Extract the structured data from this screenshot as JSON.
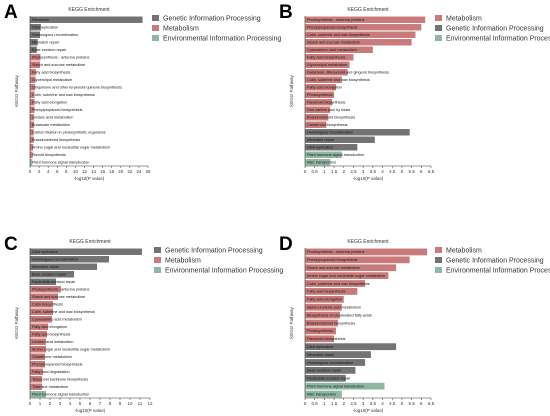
{
  "colors": {
    "genetic": "#737373",
    "metabolism": "#c97b7b",
    "environmental": "#8fb7a3",
    "axis": "#333333"
  },
  "chart_data": [
    {
      "panel": "A",
      "type": "bar",
      "orientation": "horizontal",
      "title": "KEGG Enrichment",
      "xlabel": "-log10(P value)",
      "ylabel": "KEGG Pathway",
      "xlim": [
        0,
        26
      ],
      "xticks": [
        "0",
        "2",
        "4",
        "6",
        "8",
        "10",
        "12",
        "14",
        "16",
        "18",
        "20",
        "22",
        "24",
        "26"
      ],
      "legend": [
        {
          "label": "Genetic Information Processing",
          "group": "genetic"
        },
        {
          "label": "Metabolism",
          "group": "metabolism"
        },
        {
          "label": "Environmental Information Processing",
          "group": "environmental"
        }
      ],
      "legend_position": "right",
      "categories": [
        "Ribosome",
        "DNA replication",
        "Homologous recombination",
        "Mismatch repair",
        "Base excision repair",
        "Photosynthesis - antenna proteins",
        "Starch and sucrose metabolism",
        "Fatty acid biosynthesis",
        "Glycerolipid metabolism",
        "Ubiquinone and other terpenoid-quinone biosynthesis",
        "Cutin, suberine and wax biosynthesis",
        "Fatty acid elongation",
        "Phenylpropanoid biosynthesis",
        "Linoleic acid metabolism",
        "Butanoate metabolism",
        "Carbon fixation in photosynthetic organisms",
        "Brassinosteroid biosynthesis",
        "Amino sugar and nucleotide sugar metabolism",
        "Steroid biosynthesis",
        "Plant hormone signal transduction"
      ],
      "values": [
        24.8,
        2.4,
        2.2,
        1.7,
        1.5,
        2.3,
        2.2,
        1.3,
        1.2,
        1.1,
        1.0,
        1.0,
        1.0,
        0.9,
        0.9,
        0.8,
        0.8,
        0.7,
        0.6,
        0.5
      ],
      "groups": [
        "genetic",
        "genetic",
        "genetic",
        "genetic",
        "genetic",
        "metabolism",
        "metabolism",
        "metabolism",
        "metabolism",
        "metabolism",
        "metabolism",
        "metabolism",
        "metabolism",
        "metabolism",
        "metabolism",
        "metabolism",
        "metabolism",
        "metabolism",
        "metabolism",
        "environmental"
      ]
    },
    {
      "panel": "B",
      "type": "bar",
      "orientation": "horizontal",
      "title": "KEGG Enrichment",
      "xlabel": "-log10(P value)",
      "ylabel": "KEGG Pathway",
      "xlim": [
        0,
        6.5
      ],
      "xticks": [
        "0",
        "0.5",
        "1",
        "1.5",
        "2",
        "2.5",
        "3",
        "3.5",
        "4",
        "4.5",
        "5",
        "5.5",
        "6",
        "6.5"
      ],
      "legend": [
        {
          "label": "Metabolism",
          "group": "metabolism"
        },
        {
          "label": "Genetic Information Processing",
          "group": "genetic"
        },
        {
          "label": "Environmental Information Processing",
          "group": "environmental"
        }
      ],
      "legend_position": "right",
      "categories": [
        "Photosynthesis - antenna proteins",
        "Phenylpropanoid biosynthesis",
        "Cutin, suberine and wax biosynthesis",
        "Starch and sucrose metabolism",
        "Cyanoamino acid metabolism",
        "Fatty acid biosynthesis",
        "Glycerolipid metabolism",
        "Galactose, diterpenoid and gingerol biosynthesis",
        "Cutin, suberine and wax biosynthesis",
        "Fatty acid elongation",
        "Photosynthesis",
        "Flavonoid biosynthesis",
        "One carbon pool by folate",
        "Brassinosteroid biosynthesis",
        "Carotenoid biosynthesis",
        "Homologous recombination",
        "Mismatch repair",
        "DNA replication",
        "Plant hormone signal transduction",
        "ABC transporters"
      ],
      "values": [
        6.2,
        6.0,
        5.7,
        5.5,
        3.5,
        2.5,
        2.3,
        2.2,
        1.9,
        1.6,
        1.5,
        1.4,
        1.3,
        1.2,
        1.1,
        5.4,
        3.6,
        2.7,
        1.9,
        1.3
      ],
      "groups": [
        "metabolism",
        "metabolism",
        "metabolism",
        "metabolism",
        "metabolism",
        "metabolism",
        "metabolism",
        "metabolism",
        "metabolism",
        "metabolism",
        "metabolism",
        "metabolism",
        "metabolism",
        "metabolism",
        "metabolism",
        "genetic",
        "genetic",
        "genetic",
        "environmental",
        "environmental"
      ]
    },
    {
      "panel": "C",
      "type": "bar",
      "orientation": "horizontal",
      "title": "KEGG Enrichment",
      "xlabel": "-log10(P value)",
      "ylabel": "KEGG Pathway",
      "xlim": [
        0,
        12
      ],
      "xticks": [
        "0",
        "1",
        "2",
        "3",
        "4",
        "5",
        "6",
        "7",
        "8",
        "9",
        "10",
        "11",
        "12"
      ],
      "legend": [
        {
          "label": "Genetic Information Processing",
          "group": "genetic"
        },
        {
          "label": "Metabolism",
          "group": "metabolism"
        },
        {
          "label": "Environmental Information Processing",
          "group": "environmental"
        }
      ],
      "legend_position": "right",
      "categories": [
        "DNA replication",
        "Homologous recombination",
        "Mismatch repair",
        "Base excision repair",
        "Nucleotide excision repair",
        "Photosynthesis - antenna proteins",
        "Starch and sucrose metabolism",
        "Cutin biosynthesis",
        "Cutin, suberine and wax biosynthesis",
        "Cyanoamino acid metabolism",
        "Fatty acid elongation",
        "Fatty acid biosynthesis",
        "Linoleic acid metabolism",
        "Amino sugar and nucleotide sugar metabolism",
        "Glutathione metabolism",
        "Phenylpropanoid biosynthesis",
        "Fatty acid degradation",
        "Terpenoid backbone biosynthesis",
        "Thiamine metabolism",
        "Plant hormone signal transduction"
      ],
      "values": [
        11.2,
        7.9,
        6.7,
        4.4,
        2.6,
        3.1,
        2.8,
        2.3,
        2.3,
        2.2,
        1.8,
        1.7,
        1.6,
        1.6,
        1.5,
        1.5,
        1.3,
        1.2,
        1.2,
        1.6
      ],
      "groups": [
        "genetic",
        "genetic",
        "genetic",
        "genetic",
        "genetic",
        "metabolism",
        "metabolism",
        "metabolism",
        "metabolism",
        "metabolism",
        "metabolism",
        "metabolism",
        "metabolism",
        "metabolism",
        "metabolism",
        "metabolism",
        "metabolism",
        "metabolism",
        "metabolism",
        "environmental"
      ]
    },
    {
      "panel": "D",
      "type": "bar",
      "orientation": "horizontal",
      "title": "KEGG Enrichment",
      "xlabel": "-log10(P value)",
      "ylabel": "KEGG Pathway",
      "xlim": [
        0,
        6.5
      ],
      "xticks": [
        "0",
        "0.5",
        "1",
        "1.5",
        "2",
        "2.5",
        "3",
        "3.5",
        "4",
        "4.5",
        "5",
        "5.5",
        "6",
        "6.5"
      ],
      "legend": [
        {
          "label": "Metabolism",
          "group": "metabolism"
        },
        {
          "label": "Genetic Information Processing",
          "group": "genetic"
        },
        {
          "label": "Environmental Information Processing",
          "group": "environmental"
        }
      ],
      "legend_position": "right",
      "categories": [
        "Photosynthesis - antenna proteins",
        "Phenylpropanoid biosynthesis",
        "Starch and sucrose metabolism",
        "Amino sugar and nucleotide sugar metabolism",
        "Cutin, suberine and wax biosynthesis",
        "Fatty acid biosynthesis",
        "Fatty acid elongation",
        "alpha-Linolenic acid metabolism",
        "Biosynthesis of unsaturated fatty acids",
        "Brassinosteroid biosynthesis",
        "Photosynthesis",
        "Flavonoid biosynthesis",
        "DNA replication",
        "Mismatch repair",
        "Homologous recombination",
        "Base excision repair",
        "Nucleotide excision repair",
        "Plant hormone signal transduction",
        "ABC transporters"
      ],
      "values": [
        6.3,
        5.4,
        4.7,
        4.3,
        3.1,
        2.7,
        2.0,
        1.9,
        1.8,
        1.7,
        1.6,
        1.5,
        4.7,
        3.4,
        3.1,
        2.6,
        2.1,
        4.1,
        1.9
      ],
      "groups": [
        "metabolism",
        "metabolism",
        "metabolism",
        "metabolism",
        "metabolism",
        "metabolism",
        "metabolism",
        "metabolism",
        "metabolism",
        "metabolism",
        "metabolism",
        "metabolism",
        "genetic",
        "genetic",
        "genetic",
        "genetic",
        "genetic",
        "environmental",
        "environmental"
      ]
    }
  ]
}
